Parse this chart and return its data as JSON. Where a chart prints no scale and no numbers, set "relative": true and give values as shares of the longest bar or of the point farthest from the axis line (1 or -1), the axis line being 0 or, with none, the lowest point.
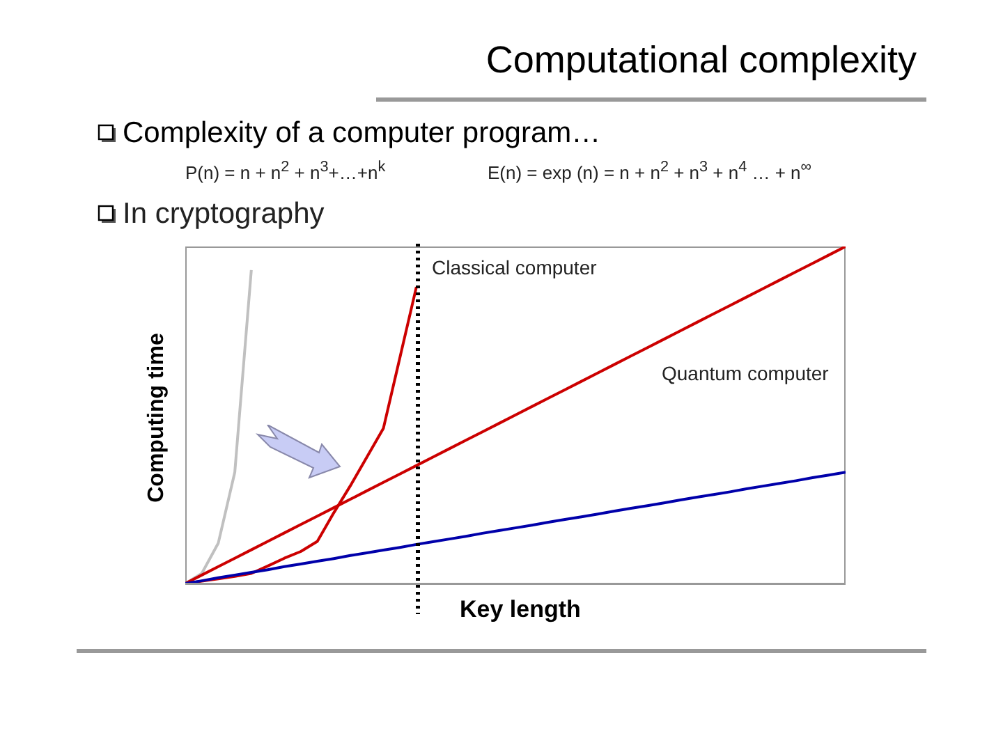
{
  "chart_data": {
    "type": "line",
    "title": "Computational complexity",
    "subtitle": "Complexity of a computer program…",
    "xlabel": "Key length",
    "ylabel": "Computing time",
    "relative": true,
    "annotations": [
      "P(n) = n + n$^{2}$ + n$^{3}$+…+n$^{k}$",
      "E(n) = exp (n) = n + n$^{2}$ + n$^{3}$ + n$^{4}$ … + n$^{∞}$",
      "In cryptography",
      "Classical computer",
      "Quantum computer"
    ],
    "categories": [
      null,
      null,
      null,
      null,
      null,
      null,
      null,
      null,
      null,
      null,
      null,
      null,
      null,
      null,
      null,
      null,
      null,
      null,
      null,
      null,
      null,
      null,
      null,
      null,
      null,
      null,
      null,
      null,
      null,
      null,
      null,
      null,
      null,
      null,
      null,
      null,
      null,
      null,
      null,
      null,
      null
    ],
    "series": [
      {
        "color": "#c0c0c0",
        "values": [
          0,
          0.03,
          0.12,
          0.33,
          0.93,
          null,
          null,
          null,
          null,
          null,
          null,
          null,
          null,
          null,
          null,
          null,
          null,
          null,
          null,
          null,
          null,
          null,
          null,
          null,
          null,
          null,
          null,
          null,
          null,
          null,
          null,
          null,
          null,
          null,
          null,
          null,
          null,
          null,
          null,
          null,
          null
        ]
      },
      {
        "color": "#cc0000",
        "values": [
          0,
          0.007,
          0.014,
          0.021,
          0.03,
          0.052,
          0.075,
          0.095,
          0.125,
          0.21,
          0.29,
          0.375,
          0.46,
          0.67,
          0.88,
          null,
          null,
          null,
          null,
          null,
          null,
          null,
          null,
          null,
          null,
          null,
          null,
          null,
          null,
          null,
          null,
          null,
          null,
          null,
          null,
          null,
          null,
          null,
          null,
          null,
          null
        ]
      },
      {
        "color": "#cc0000",
        "values": [
          0,
          0.025,
          0.05,
          0.075,
          0.1,
          0.125,
          0.15,
          0.175,
          0.2,
          0.225,
          0.25,
          0.275,
          0.3,
          0.325,
          0.35,
          0.375,
          0.4,
          0.425,
          0.45,
          0.475,
          0.5,
          0.525,
          0.55,
          0.575,
          0.6,
          0.625,
          0.65,
          0.675,
          0.7,
          0.725,
          0.75,
          0.775,
          0.8,
          0.825,
          0.85,
          0.875,
          0.9,
          0.925,
          0.95,
          0.975,
          1
        ]
      },
      {
        "color": "#0000aa",
        "values": [
          0,
          0.008,
          0.017,
          0.025,
          0.033,
          0.041,
          0.05,
          0.058,
          0.066,
          0.074,
          0.083,
          0.091,
          0.099,
          0.107,
          0.116,
          0.124,
          0.132,
          0.14,
          0.149,
          0.157,
          0.165,
          0.173,
          0.182,
          0.19,
          0.198,
          0.206,
          0.215,
          0.223,
          0.231,
          0.239,
          0.248,
          0.256,
          0.264,
          0.272,
          0.281,
          0.289,
          0.297,
          0.305,
          0.314,
          0.322,
          0.33
        ]
      }
    ]
  }
}
